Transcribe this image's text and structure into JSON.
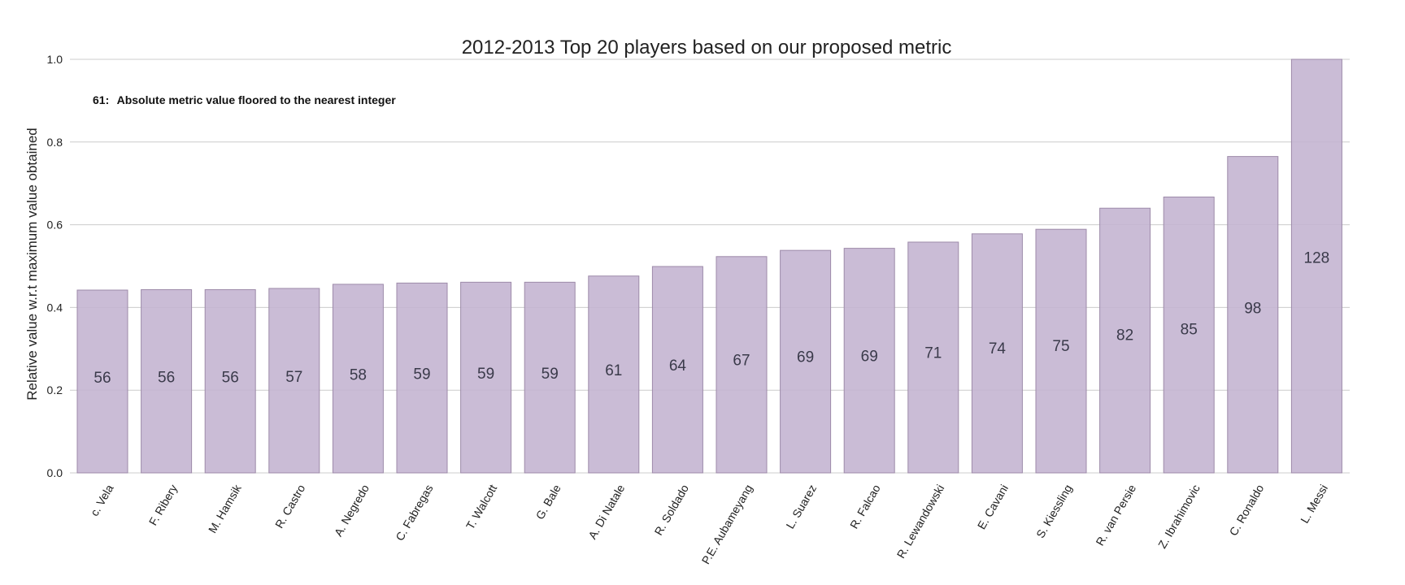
{
  "chart_data": {
    "type": "bar",
    "title": "2012-2013 Top 20 players based on our proposed metric",
    "xlabel": "",
    "ylabel": "Relative value w.r.t maximum value obtained",
    "ylim": [
      0,
      1.0
    ],
    "yticks": [
      "0.0",
      "0.2",
      "0.4",
      "0.6",
      "0.8",
      "1.0"
    ],
    "grid": true,
    "annotation": {
      "key": "61:",
      "text": "Absolute metric value floored to the nearest integer"
    },
    "bar_color": "#c3b3d0",
    "categories": [
      "c. Vela",
      "F. Ribery",
      "M. Hamsik",
      "R. Castro",
      "A. Negredo",
      "C. Fabregas",
      "T. Walcott",
      "G. Bale",
      "A. Di Natale",
      "R. Soldado",
      "P.E. Aubameyang",
      "L. Suarez",
      "R. Falcao",
      "R. Lewandowski",
      "E. Cavani",
      "S. Kiessling",
      "R. van Persie",
      "Z. Ibrahimovic",
      "C. Ronaldo",
      "L. Messi"
    ],
    "values": [
      0.442,
      0.443,
      0.443,
      0.446,
      0.456,
      0.459,
      0.461,
      0.461,
      0.476,
      0.499,
      0.523,
      0.538,
      0.543,
      0.558,
      0.578,
      0.589,
      0.64,
      0.667,
      0.765,
      1.0
    ],
    "labels": [
      "56",
      "56",
      "56",
      "57",
      "58",
      "59",
      "59",
      "59",
      "61",
      "64",
      "67",
      "69",
      "69",
      "71",
      "74",
      "75",
      "82",
      "85",
      "98",
      "128"
    ]
  }
}
